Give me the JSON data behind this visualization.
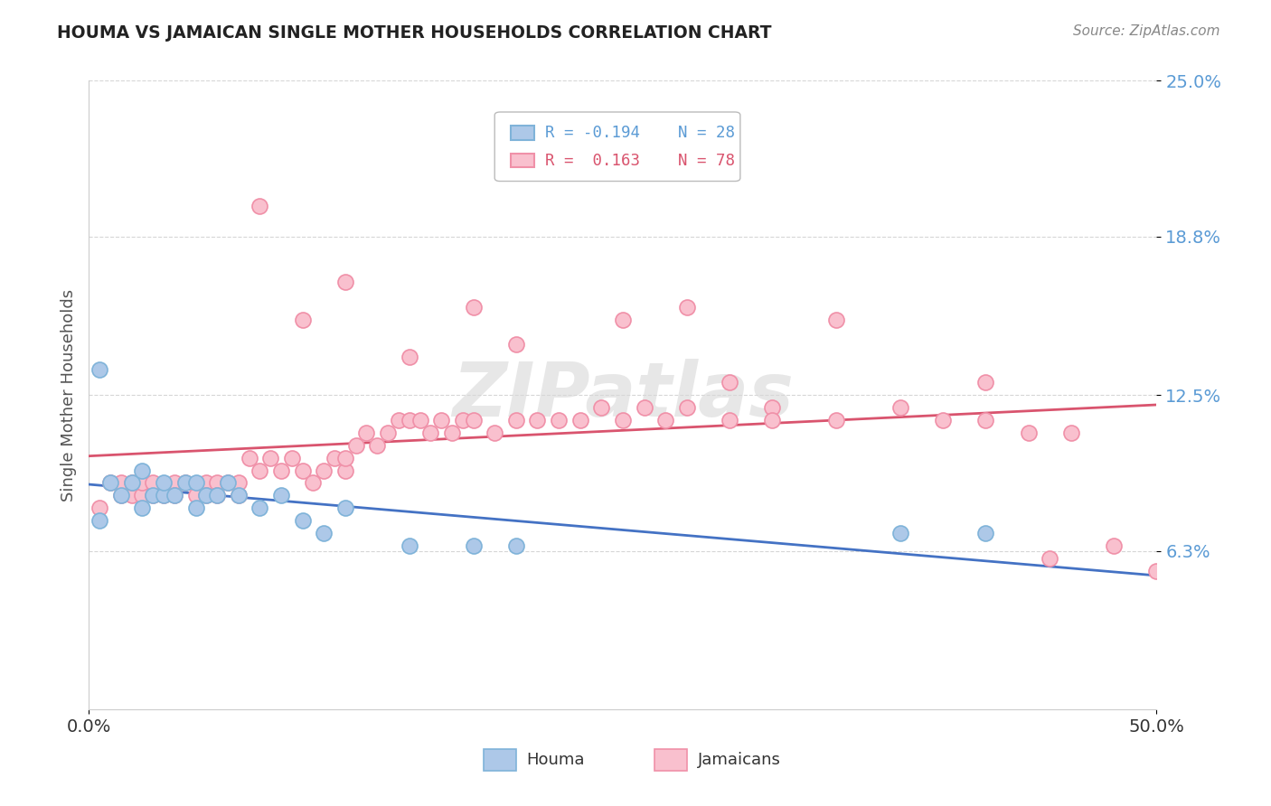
{
  "title": "HOUMA VS JAMAICAN SINGLE MOTHER HOUSEHOLDS CORRELATION CHART",
  "source_text": "Source: ZipAtlas.com",
  "ylabel": "Single Mother Households",
  "xlim": [
    0.0,
    0.5
  ],
  "ylim": [
    0.0,
    0.25
  ],
  "ytick_labels": [
    "6.3%",
    "12.5%",
    "18.8%",
    "25.0%"
  ],
  "ytick_positions": [
    0.063,
    0.125,
    0.188,
    0.25
  ],
  "houma_color": "#adc8e8",
  "houma_edge_color": "#7fb3d9",
  "jamaican_color": "#f9c0ce",
  "jamaican_edge_color": "#f090a8",
  "houma_line_color": "#4472c4",
  "jamaican_line_color": "#d9546e",
  "watermark_color": "#d8d8d8",
  "background_color": "#ffffff",
  "grid_color": "#cccccc",
  "houma_x": [
    0.005,
    0.01,
    0.015,
    0.02,
    0.025,
    0.025,
    0.03,
    0.035,
    0.035,
    0.04,
    0.045,
    0.05,
    0.05,
    0.055,
    0.06,
    0.065,
    0.07,
    0.08,
    0.09,
    0.1,
    0.11,
    0.12,
    0.15,
    0.18,
    0.2,
    0.38,
    0.42,
    0.005
  ],
  "houma_y": [
    0.075,
    0.09,
    0.085,
    0.09,
    0.08,
    0.095,
    0.085,
    0.085,
    0.09,
    0.085,
    0.09,
    0.08,
    0.09,
    0.085,
    0.085,
    0.09,
    0.085,
    0.08,
    0.085,
    0.075,
    0.07,
    0.08,
    0.065,
    0.065,
    0.065,
    0.07,
    0.07,
    0.135
  ],
  "jamaican_x": [
    0.005,
    0.01,
    0.015,
    0.015,
    0.02,
    0.02,
    0.025,
    0.025,
    0.03,
    0.03,
    0.035,
    0.04,
    0.04,
    0.045,
    0.05,
    0.055,
    0.055,
    0.06,
    0.06,
    0.065,
    0.07,
    0.07,
    0.075,
    0.08,
    0.085,
    0.09,
    0.095,
    0.1,
    0.105,
    0.11,
    0.115,
    0.12,
    0.12,
    0.125,
    0.13,
    0.135,
    0.14,
    0.145,
    0.15,
    0.155,
    0.16,
    0.165,
    0.17,
    0.175,
    0.18,
    0.19,
    0.2,
    0.21,
    0.22,
    0.23,
    0.24,
    0.25,
    0.26,
    0.27,
    0.28,
    0.3,
    0.32,
    0.35,
    0.38,
    0.4,
    0.42,
    0.44,
    0.46,
    0.3,
    0.32,
    0.1,
    0.15,
    0.2,
    0.28,
    0.35,
    0.42,
    0.48,
    0.5,
    0.45,
    0.08,
    0.12,
    0.18,
    0.25
  ],
  "jamaican_y": [
    0.08,
    0.09,
    0.085,
    0.09,
    0.085,
    0.09,
    0.085,
    0.09,
    0.085,
    0.09,
    0.085,
    0.09,
    0.085,
    0.09,
    0.085,
    0.09,
    0.085,
    0.09,
    0.085,
    0.09,
    0.085,
    0.09,
    0.1,
    0.095,
    0.1,
    0.095,
    0.1,
    0.095,
    0.09,
    0.095,
    0.1,
    0.095,
    0.1,
    0.105,
    0.11,
    0.105,
    0.11,
    0.115,
    0.115,
    0.115,
    0.11,
    0.115,
    0.11,
    0.115,
    0.115,
    0.11,
    0.115,
    0.115,
    0.115,
    0.115,
    0.12,
    0.115,
    0.12,
    0.115,
    0.12,
    0.115,
    0.12,
    0.115,
    0.12,
    0.115,
    0.115,
    0.11,
    0.11,
    0.13,
    0.115,
    0.155,
    0.14,
    0.145,
    0.16,
    0.155,
    0.13,
    0.065,
    0.055,
    0.06,
    0.2,
    0.17,
    0.16,
    0.155
  ]
}
